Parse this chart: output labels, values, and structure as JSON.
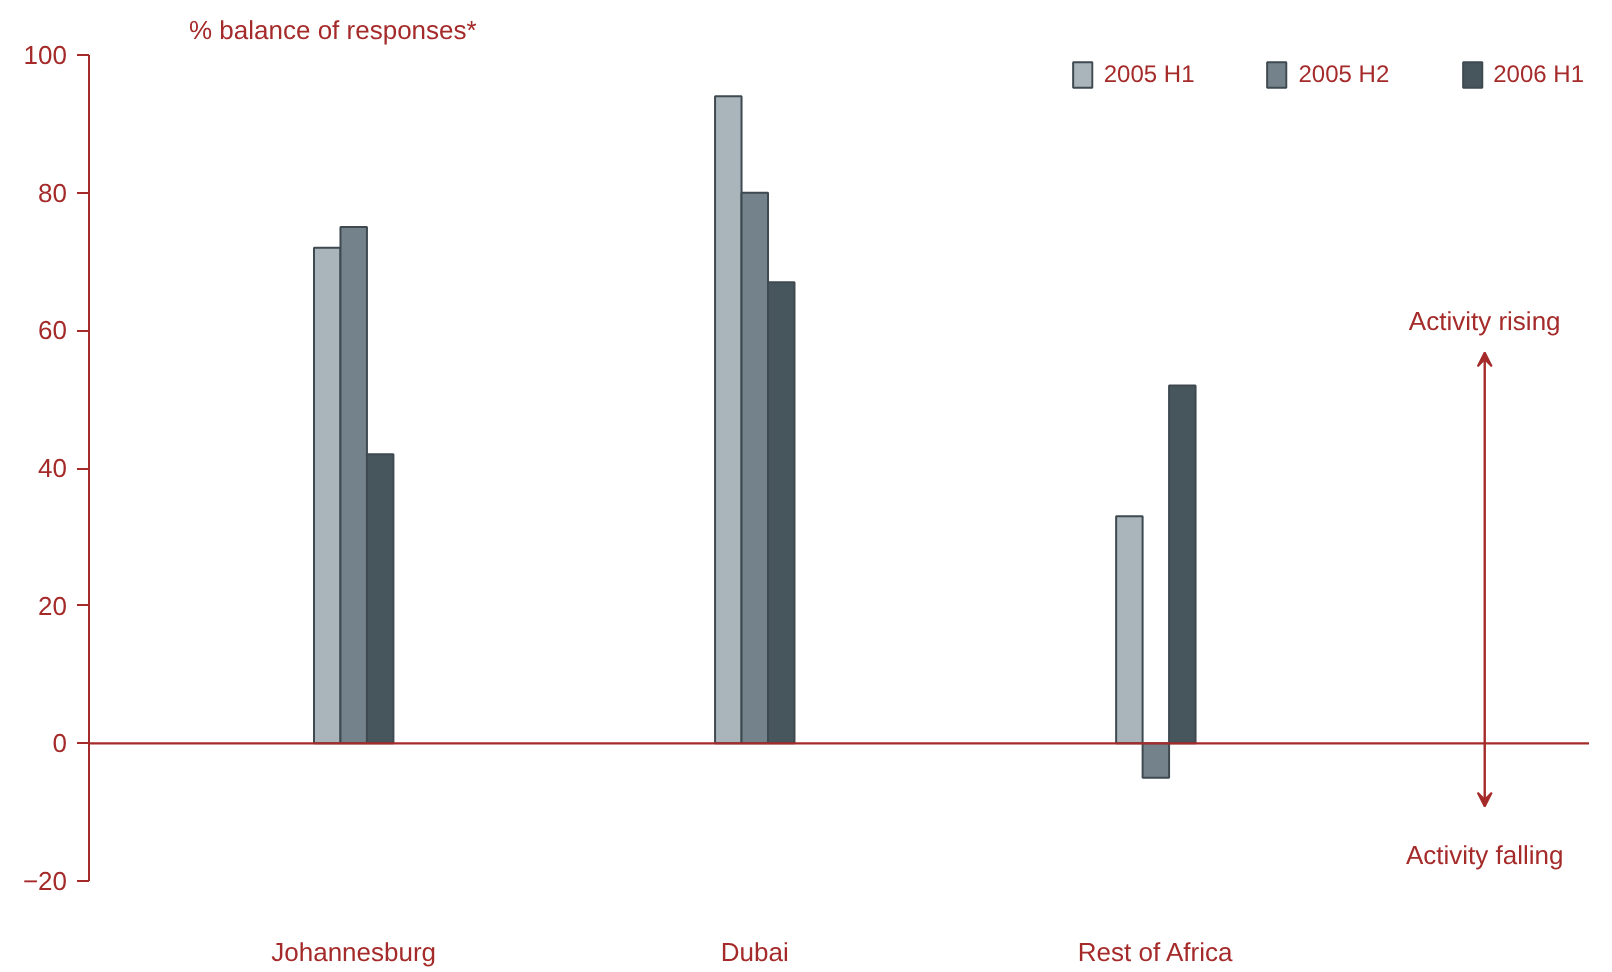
{
  "chart_data": {
    "type": "bar",
    "title": "% balance of responses*",
    "categories": [
      "Johannesburg",
      "Dubai",
      "Rest of Africa"
    ],
    "series": [
      {
        "name": "2005 H1",
        "color": "#a9b4bb",
        "values": [
          72,
          94,
          33
        ]
      },
      {
        "name": "2005 H2",
        "color": "#74838b",
        "values": [
          75,
          80,
          -5
        ]
      },
      {
        "name": "2006 H1",
        "color": "#47565d",
        "values": [
          42,
          67,
          52
        ]
      }
    ],
    "ylim": [
      -20,
      100
    ],
    "yticks": [
      -20,
      0,
      20,
      40,
      60,
      80,
      100
    ],
    "ref_lines": [
      {
        "axis": "y",
        "value": 0,
        "color": "#a52a2a"
      }
    ],
    "annotations": [
      "Activity rising",
      "Activity falling"
    ],
    "grid": false,
    "legend": "top right"
  }
}
